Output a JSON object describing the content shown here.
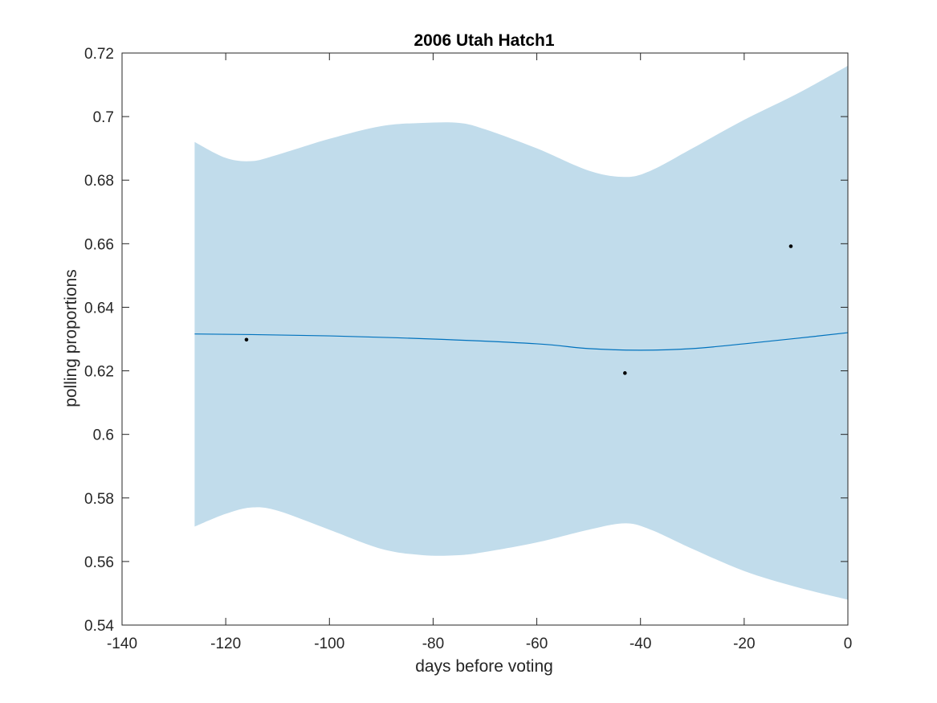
{
  "chart_data": {
    "type": "line",
    "title": "2006 Utah Hatch1",
    "xlabel": "days before voting",
    "ylabel": "polling proportions",
    "xlim": [
      -140,
      0
    ],
    "ylim": [
      0.54,
      0.72
    ],
    "xticks": [
      -140,
      -120,
      -100,
      -80,
      -60,
      -40,
      -20,
      0
    ],
    "xtick_labels": [
      "-140",
      "-120",
      "-100",
      "-80",
      "-60",
      "-40",
      "-20",
      "0"
    ],
    "yticks": [
      0.54,
      0.56,
      0.58,
      0.6,
      0.62,
      0.64,
      0.66,
      0.68,
      0.7,
      0.72
    ],
    "ytick_labels": [
      "0.54",
      "0.56",
      "0.58",
      "0.6",
      "0.62",
      "0.64",
      "0.66",
      "0.68",
      "0.7",
      "0.72"
    ],
    "grid": false,
    "series": [
      {
        "kind": "band",
        "x": [
          -126,
          -120,
          -115,
          -110,
          -100,
          -90,
          -82,
          -75,
          -70,
          -60,
          -50,
          -43,
          -38,
          -30,
          -20,
          -10,
          0
        ],
        "upper": [
          0.692,
          0.687,
          0.686,
          0.688,
          0.693,
          0.697,
          0.698,
          0.698,
          0.696,
          0.69,
          0.683,
          0.681,
          0.683,
          0.69,
          0.699,
          0.707,
          0.716
        ],
        "lower": [
          0.571,
          0.575,
          0.577,
          0.576,
          0.57,
          0.564,
          0.562,
          0.562,
          0.563,
          0.566,
          0.57,
          0.572,
          0.57,
          0.564,
          0.557,
          0.552,
          0.548
        ],
        "color": "#c1dceb"
      },
      {
        "kind": "line",
        "x": [
          -126,
          -115,
          -100,
          -80,
          -60,
          -50,
          -40,
          -30,
          -20,
          -10,
          0
        ],
        "y": [
          0.6316,
          0.6314,
          0.631,
          0.63,
          0.6285,
          0.627,
          0.6265,
          0.627,
          0.6285,
          0.6302,
          0.632
        ],
        "color": "#0072bd"
      },
      {
        "kind": "scatter",
        "x": [
          -116,
          -43,
          -11
        ],
        "y": [
          0.6298,
          0.6193,
          0.6592
        ],
        "color": "#000000"
      }
    ]
  }
}
